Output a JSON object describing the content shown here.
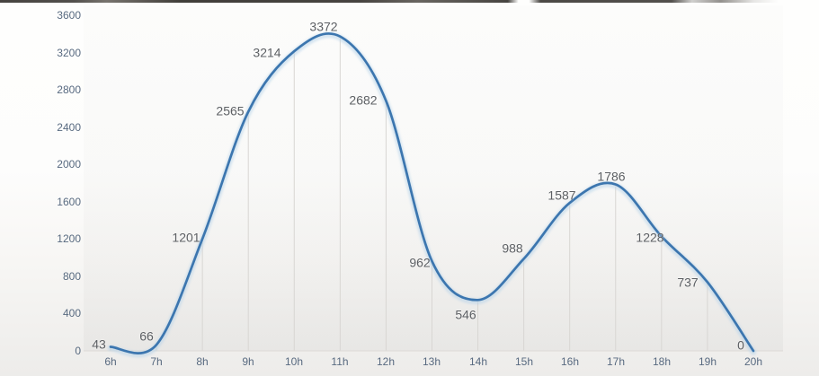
{
  "chart_data": {
    "type": "line",
    "x": [
      "6h",
      "7h",
      "8h",
      "9h",
      "10h",
      "11h",
      "12h",
      "13h",
      "14h",
      "15h",
      "16h",
      "17h",
      "18h",
      "19h",
      "20h"
    ],
    "values": [
      43,
      66,
      1201,
      2565,
      3214,
      3372,
      2682,
      962,
      546,
      988,
      1587,
      1786,
      1228,
      737,
      0
    ],
    "point_labels": [
      "43",
      "66",
      "1201",
      "2565",
      "3214",
      "3372",
      "2682",
      "962",
      "546",
      "988",
      "1587",
      "1786",
      "1228",
      "737",
      "0"
    ],
    "y_ticks": [
      "0",
      "400",
      "800",
      "1200",
      "1600",
      "2000",
      "2400",
      "2800",
      "3200",
      "3600"
    ],
    "ylim": [
      0,
      3600
    ],
    "ytick_step": 400,
    "title": "",
    "xlabel": "",
    "ylabel": "",
    "legend": "none",
    "grid": "vertical droplines from each point to baseline, no horizontal gridlines",
    "smoothing": "smoothed spline (catmull-rom)",
    "colors": {
      "line": "#3c76af",
      "line_glow": "#b7d3ea",
      "dropline": "#d8d6d3",
      "baseline": "#dcdad6",
      "point_label": "#5d6064",
      "axis_label": "#586a80",
      "background_top": "#fefefd",
      "background_bottom": "#edecea",
      "top_strip": "#2c2925"
    }
  }
}
